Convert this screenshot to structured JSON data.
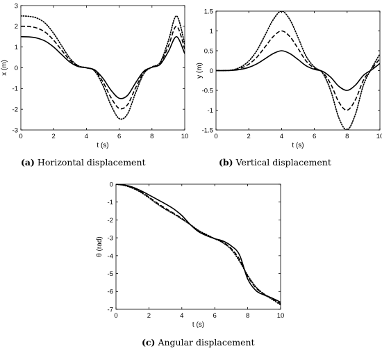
{
  "captions": [
    {
      "tag": "(a)",
      "text": "Horizontal displacement"
    },
    {
      "tag": "(b)",
      "text": "Vertical displacement"
    },
    {
      "tag": "(c)",
      "text": "Angular displacement"
    }
  ],
  "chart_data": [
    {
      "type": "line",
      "title": "",
      "xlabel": "t (s)",
      "ylabel": "x (m)",
      "xlim": [
        0,
        10
      ],
      "ylim": [
        -3,
        3
      ],
      "xticks": [
        0,
        2,
        4,
        6,
        8,
        10
      ],
      "yticks": [
        -3,
        -2,
        -1,
        0,
        1,
        2,
        3
      ],
      "grid": false,
      "x": [
        0,
        0.5,
        1,
        1.5,
        2,
        2.5,
        3,
        3.5,
        4,
        4.5,
        5,
        5.5,
        6,
        6.5,
        7,
        7.5,
        8,
        8.5,
        9,
        9.5,
        10
      ],
      "series": [
        {
          "style": "solid",
          "values": [
            1.5,
            1.49,
            1.43,
            1.28,
            1.0,
            0.63,
            0.27,
            0.06,
            0.0,
            -0.1,
            -0.5,
            -1.08,
            -1.47,
            -1.34,
            -0.73,
            -0.17,
            0.02,
            0.16,
            0.78,
            1.5,
            0.68
          ]
        },
        {
          "style": "dashed",
          "values": [
            2.0,
            1.99,
            1.91,
            1.71,
            1.33,
            0.84,
            0.36,
            0.08,
            0.0,
            -0.13,
            -0.67,
            -1.44,
            -1.96,
            -1.79,
            -0.97,
            -0.23,
            0.03,
            0.21,
            1.04,
            2.0,
            0.91
          ]
        },
        {
          "style": "dotted",
          "values": [
            2.5,
            2.48,
            2.39,
            2.14,
            1.66,
            1.05,
            0.45,
            0.1,
            0.0,
            -0.16,
            -0.84,
            -1.8,
            -2.45,
            -2.24,
            -1.21,
            -0.29,
            0.04,
            0.26,
            1.3,
            2.5,
            1.14
          ]
        }
      ]
    },
    {
      "type": "line",
      "title": "",
      "xlabel": "t (s)",
      "ylabel": "y (m)",
      "xlim": [
        0,
        10
      ],
      "ylim": [
        -1.5,
        1.5
      ],
      "xticks": [
        0,
        2,
        4,
        6,
        8,
        10
      ],
      "yticks": [
        -1.5,
        -1,
        -0.5,
        0,
        0.5,
        1,
        1.5
      ],
      "grid": false,
      "x": [
        0,
        0.5,
        1,
        1.5,
        2,
        2.5,
        3,
        3.5,
        4,
        4.5,
        5,
        5.5,
        6,
        6.5,
        7,
        7.5,
        8,
        8.5,
        9,
        9.5,
        10
      ],
      "series": [
        {
          "style": "solid",
          "values": [
            0.0,
            0.0,
            0.005,
            0.03,
            0.08,
            0.17,
            0.3,
            0.43,
            0.5,
            0.43,
            0.28,
            0.12,
            0.03,
            -0.02,
            -0.17,
            -0.4,
            -0.5,
            -0.37,
            -0.12,
            0.02,
            0.18
          ]
        },
        {
          "style": "dashed",
          "values": [
            0.0,
            0.0,
            0.01,
            0.06,
            0.16,
            0.34,
            0.6,
            0.86,
            1.0,
            0.86,
            0.56,
            0.24,
            0.06,
            -0.04,
            -0.34,
            -0.8,
            -1.0,
            -0.74,
            -0.24,
            0.04,
            0.3
          ]
        },
        {
          "style": "dotted",
          "values": [
            0.0,
            0.0,
            0.015,
            0.09,
            0.24,
            0.51,
            0.9,
            1.29,
            1.5,
            1.29,
            0.84,
            0.36,
            0.09,
            -0.06,
            -0.51,
            -1.2,
            -1.5,
            -1.11,
            -0.36,
            0.06,
            0.42
          ]
        }
      ]
    },
    {
      "type": "line",
      "title": "",
      "xlabel": "t (s)",
      "ylabel": "θ (rad)",
      "xlim": [
        0,
        10
      ],
      "ylim": [
        -7,
        0
      ],
      "xticks": [
        0,
        2,
        4,
        6,
        8,
        10
      ],
      "yticks": [
        -7,
        -6,
        -5,
        -4,
        -3,
        -2,
        -1,
        0
      ],
      "grid": false,
      "x": [
        0,
        0.5,
        1,
        1.5,
        2,
        2.5,
        3,
        3.5,
        4,
        4.5,
        5,
        5.5,
        6,
        6.5,
        7,
        7.5,
        8,
        8.5,
        9,
        9.5,
        10
      ],
      "series": [
        {
          "style": "solid",
          "values": [
            0.0,
            -0.04,
            -0.16,
            -0.36,
            -0.6,
            -0.85,
            -1.1,
            -1.38,
            -1.75,
            -2.25,
            -2.65,
            -2.88,
            -3.05,
            -3.18,
            -3.45,
            -3.95,
            -5.3,
            -5.95,
            -6.2,
            -6.38,
            -6.6
          ]
        },
        {
          "style": "dashed",
          "values": [
            0.0,
            -0.06,
            -0.2,
            -0.42,
            -0.72,
            -1.05,
            -1.35,
            -1.62,
            -1.92,
            -2.25,
            -2.6,
            -2.85,
            -3.05,
            -3.25,
            -3.6,
            -4.2,
            -5.15,
            -5.8,
            -6.15,
            -6.4,
            -6.68
          ]
        },
        {
          "style": "dotted",
          "values": [
            0.0,
            -0.07,
            -0.22,
            -0.45,
            -0.76,
            -1.1,
            -1.4,
            -1.66,
            -1.95,
            -2.25,
            -2.58,
            -2.82,
            -3.05,
            -3.28,
            -3.65,
            -4.3,
            -5.1,
            -5.75,
            -6.15,
            -6.45,
            -6.75
          ]
        }
      ]
    }
  ]
}
